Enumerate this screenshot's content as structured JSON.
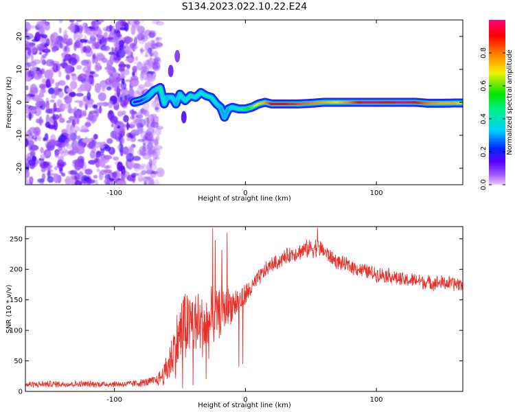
{
  "figure_title": "S134.2023.022.10.22.E24",
  "colors": {
    "snr_line": "#e8302a",
    "scatter": "#7a3cf0",
    "axis": "#000000",
    "background": "#ffffff"
  },
  "chart_data": [
    {
      "type": "heatmap",
      "title": "",
      "xlabel": "Height of straight line (km)",
      "ylabel": "Frequency (Hz)",
      "xlim": [
        -168,
        166
      ],
      "ylim": [
        -25,
        25
      ],
      "xticks": [
        -100,
        0,
        100
      ],
      "xtick_labels": [
        "-100",
        "0",
        "100"
      ],
      "yticks": [
        -20,
        -10,
        0,
        10,
        20
      ],
      "ytick_labels": [
        "-20",
        "-10",
        "0",
        "10",
        "20"
      ],
      "grid": false,
      "colormap": "rainbow (magenta-blue-cyan-green-yellow-red-pink)",
      "colorbar": {
        "label": "Normalized spectral amplitude",
        "range": [
          0,
          1
        ],
        "ticks": [
          0,
          0.2,
          0.4,
          0.6,
          0.8
        ],
        "tick_labels": [
          "0.0",
          "0.2",
          "0.4",
          "0.6",
          "0.8"
        ]
      },
      "noise_region": {
        "x_range": [
          -168,
          -73
        ],
        "y_range": [
          -25,
          25
        ],
        "amplitude": "0.05-0.3"
      },
      "ridge": {
        "x": [
          -85,
          -80,
          -75,
          -70,
          -65,
          -62,
          -60,
          -56,
          -53,
          -50,
          -46,
          -42,
          -38,
          -34,
          -30,
          -26,
          -22,
          -19,
          -16,
          -13,
          -10,
          -5,
          0,
          5,
          10,
          15,
          20,
          30,
          40,
          50,
          60,
          70,
          80,
          90,
          100,
          110,
          120,
          130,
          140,
          150,
          160,
          165
        ],
        "y": [
          0,
          0.5,
          1.5,
          3.5,
          4.5,
          -0.5,
          1.5,
          1.5,
          -0.5,
          2.5,
          0.5,
          2,
          1.5,
          3,
          2,
          1.5,
          -0.5,
          -1.5,
          -4.5,
          -2,
          -1.5,
          -2,
          -2,
          -1.5,
          -0.5,
          0,
          -0.5,
          -0.5,
          -0.5,
          -0.3,
          0,
          0,
          0,
          0,
          0,
          0,
          0,
          0,
          -0.3,
          -0.3,
          -0.2,
          -0.2
        ],
        "amplitude": [
          0.15,
          0.2,
          0.3,
          0.35,
          0.45,
          0.35,
          0.3,
          0.35,
          0.3,
          0.35,
          0.4,
          0.4,
          0.35,
          0.35,
          0.4,
          0.4,
          0.35,
          0.3,
          0.3,
          0.3,
          0.35,
          0.4,
          0.5,
          0.6,
          0.7,
          0.75,
          0.9,
          0.9,
          0.85,
          0.8,
          0.75,
          0.7,
          0.8,
          0.95,
          0.95,
          0.9,
          1.0,
          0.9,
          0.8,
          0.75,
          0.75,
          0.7
        ]
      },
      "side_features": [
        {
          "x": -57,
          "y": 9.5,
          "amplitude": 0.12
        },
        {
          "x": -52,
          "y": 14,
          "amplitude": 0.1
        },
        {
          "x": -47,
          "y": -4.5,
          "amplitude": 0.15
        }
      ]
    },
    {
      "type": "line",
      "title": "",
      "xlabel": "Height of straight line (km)",
      "ylabel": "SNR (10 * v/v)",
      "xlim": [
        -168,
        166
      ],
      "ylim": [
        0,
        270
      ],
      "xticks": [
        -100,
        0,
        100
      ],
      "xtick_labels": [
        "-100",
        "0",
        "100"
      ],
      "yticks": [
        0,
        50,
        100,
        150,
        200,
        250
      ],
      "ytick_labels": [
        "0",
        "50",
        "100",
        "150",
        "200",
        "250"
      ],
      "grid": false,
      "series": [
        {
          "x": [
            -168,
            -150,
            -130,
            -110,
            -90,
            -75,
            -68,
            -62,
            -57,
            -52,
            -48,
            -44,
            -40,
            -36,
            -32,
            -28,
            -24,
            -20,
            -16,
            -12,
            -8,
            -4,
            0,
            5,
            10,
            15,
            20,
            25,
            30,
            35,
            40,
            45,
            50,
            55,
            60,
            65,
            70,
            80,
            90,
            100,
            110,
            120,
            130,
            140,
            150,
            160,
            166
          ],
          "y": [
            11,
            12,
            12,
            12,
            12,
            15,
            18,
            28,
            55,
            80,
            105,
            110,
            115,
            105,
            110,
            110,
            120,
            128,
            135,
            140,
            145,
            148,
            158,
            170,
            185,
            198,
            208,
            212,
            220,
            225,
            228,
            232,
            235,
            236,
            230,
            220,
            212,
            205,
            198,
            192,
            190,
            182,
            182,
            178,
            178,
            176,
            176
          ],
          "noise_amplitude": [
            6,
            6,
            6,
            6,
            6,
            8,
            10,
            22,
            45,
            60,
            70,
            65,
            70,
            60,
            65,
            60,
            55,
            45,
            40,
            35,
            30,
            25,
            22,
            18,
            16,
            15,
            14,
            14,
            14,
            15,
            16,
            16,
            18,
            18,
            16,
            14,
            14,
            14,
            14,
            14,
            14,
            14,
            14,
            14,
            14,
            14,
            14
          ],
          "notable_peaks": [
            {
              "x": -47,
              "y": 147
            },
            {
              "x": -46,
              "y": 160
            },
            {
              "x": -38,
              "y": 156
            },
            {
              "x": -36,
              "y": 160
            },
            {
              "x": -25,
              "y": 268
            },
            {
              "x": -23,
              "y": 248
            },
            {
              "x": -18,
              "y": 232
            },
            {
              "x": -14,
              "y": 260
            },
            {
              "x": 55,
              "y": 268
            }
          ],
          "notable_dips": [
            {
              "x": -48,
              "y": 5
            },
            {
              "x": -40,
              "y": 10
            },
            {
              "x": -30,
              "y": 20
            },
            {
              "x": -5,
              "y": 40
            },
            {
              "x": -2,
              "y": 45
            }
          ]
        }
      ]
    }
  ]
}
